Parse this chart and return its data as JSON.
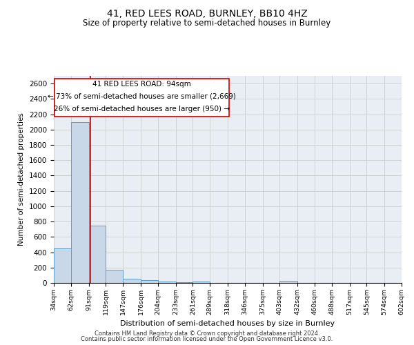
{
  "title": "41, RED LEES ROAD, BURNLEY, BB10 4HZ",
  "subtitle": "Size of property relative to semi-detached houses in Burnley",
  "xlabel": "Distribution of semi-detached houses by size in Burnley",
  "ylabel": "Number of semi-detached properties",
  "footnote1": "Contains HM Land Registry data © Crown copyright and database right 2024.",
  "footnote2": "Contains public sector information licensed under the Open Government Licence v3.0.",
  "annotation_title": "41 RED LEES ROAD: 94sqm",
  "annotation_line1": "← 73% of semi-detached houses are smaller (2,669)",
  "annotation_line2": "26% of semi-detached houses are larger (950) →",
  "property_size": 94,
  "bar_edges": [
    34,
    62,
    91,
    119,
    147,
    176,
    204,
    233,
    261,
    289,
    318,
    346,
    375,
    403,
    432,
    460,
    488,
    517,
    545,
    574,
    602
  ],
  "bar_values": [
    450,
    2100,
    750,
    175,
    50,
    32,
    20,
    12,
    22,
    0,
    0,
    0,
    0,
    30,
    0,
    0,
    0,
    0,
    0,
    0
  ],
  "bar_color": "#c8d8e8",
  "bar_edge_color": "#5a9ec8",
  "grid_color": "#cccccc",
  "bg_color": "#e8eef4",
  "annotation_box_color": "#cc0000",
  "vline_color": "#cc0000",
  "ylim": [
    0,
    2700
  ],
  "yticks": [
    0,
    200,
    400,
    600,
    800,
    1000,
    1200,
    1400,
    1600,
    1800,
    2000,
    2200,
    2400,
    2600
  ]
}
